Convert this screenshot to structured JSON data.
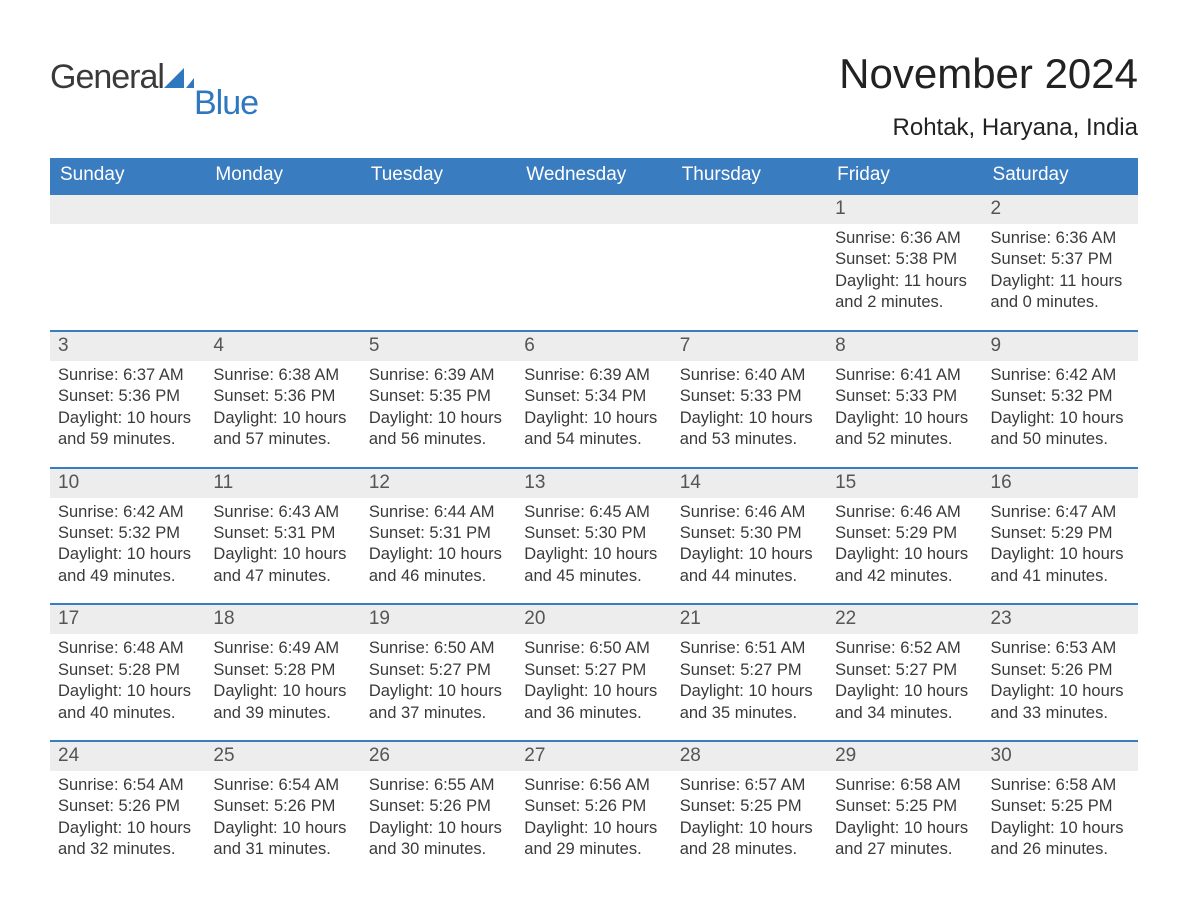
{
  "brand": {
    "name1": "General",
    "name2": "Blue",
    "color_text": "#3a3a3a",
    "color_accent": "#2f78bf"
  },
  "title": "November 2024",
  "location": "Rohtak, Haryana, India",
  "colors": {
    "header_bg": "#3a7cc0",
    "header_text": "#ffffff",
    "daynum_bg": "#ededed",
    "daynum_border": "#3a7cc0",
    "body_text": "#3a3a3a",
    "page_bg": "#ffffff"
  },
  "fonts": {
    "title_size_pt": 32,
    "location_size_pt": 18,
    "dow_size_pt": 14,
    "daynum_size_pt": 14,
    "body_size_pt": 12
  },
  "days_of_week": [
    "Sunday",
    "Monday",
    "Tuesday",
    "Wednesday",
    "Thursday",
    "Friday",
    "Saturday"
  ],
  "leading_blanks": 5,
  "days": [
    {
      "n": 1,
      "sunrise": "6:36 AM",
      "sunset": "5:38 PM",
      "daylight": "11 hours and 2 minutes."
    },
    {
      "n": 2,
      "sunrise": "6:36 AM",
      "sunset": "5:37 PM",
      "daylight": "11 hours and 0 minutes."
    },
    {
      "n": 3,
      "sunrise": "6:37 AM",
      "sunset": "5:36 PM",
      "daylight": "10 hours and 59 minutes."
    },
    {
      "n": 4,
      "sunrise": "6:38 AM",
      "sunset": "5:36 PM",
      "daylight": "10 hours and 57 minutes."
    },
    {
      "n": 5,
      "sunrise": "6:39 AM",
      "sunset": "5:35 PM",
      "daylight": "10 hours and 56 minutes."
    },
    {
      "n": 6,
      "sunrise": "6:39 AM",
      "sunset": "5:34 PM",
      "daylight": "10 hours and 54 minutes."
    },
    {
      "n": 7,
      "sunrise": "6:40 AM",
      "sunset": "5:33 PM",
      "daylight": "10 hours and 53 minutes."
    },
    {
      "n": 8,
      "sunrise": "6:41 AM",
      "sunset": "5:33 PM",
      "daylight": "10 hours and 52 minutes."
    },
    {
      "n": 9,
      "sunrise": "6:42 AM",
      "sunset": "5:32 PM",
      "daylight": "10 hours and 50 minutes."
    },
    {
      "n": 10,
      "sunrise": "6:42 AM",
      "sunset": "5:32 PM",
      "daylight": "10 hours and 49 minutes."
    },
    {
      "n": 11,
      "sunrise": "6:43 AM",
      "sunset": "5:31 PM",
      "daylight": "10 hours and 47 minutes."
    },
    {
      "n": 12,
      "sunrise": "6:44 AM",
      "sunset": "5:31 PM",
      "daylight": "10 hours and 46 minutes."
    },
    {
      "n": 13,
      "sunrise": "6:45 AM",
      "sunset": "5:30 PM",
      "daylight": "10 hours and 45 minutes."
    },
    {
      "n": 14,
      "sunrise": "6:46 AM",
      "sunset": "5:30 PM",
      "daylight": "10 hours and 44 minutes."
    },
    {
      "n": 15,
      "sunrise": "6:46 AM",
      "sunset": "5:29 PM",
      "daylight": "10 hours and 42 minutes."
    },
    {
      "n": 16,
      "sunrise": "6:47 AM",
      "sunset": "5:29 PM",
      "daylight": "10 hours and 41 minutes."
    },
    {
      "n": 17,
      "sunrise": "6:48 AM",
      "sunset": "5:28 PM",
      "daylight": "10 hours and 40 minutes."
    },
    {
      "n": 18,
      "sunrise": "6:49 AM",
      "sunset": "5:28 PM",
      "daylight": "10 hours and 39 minutes."
    },
    {
      "n": 19,
      "sunrise": "6:50 AM",
      "sunset": "5:27 PM",
      "daylight": "10 hours and 37 minutes."
    },
    {
      "n": 20,
      "sunrise": "6:50 AM",
      "sunset": "5:27 PM",
      "daylight": "10 hours and 36 minutes."
    },
    {
      "n": 21,
      "sunrise": "6:51 AM",
      "sunset": "5:27 PM",
      "daylight": "10 hours and 35 minutes."
    },
    {
      "n": 22,
      "sunrise": "6:52 AM",
      "sunset": "5:27 PM",
      "daylight": "10 hours and 34 minutes."
    },
    {
      "n": 23,
      "sunrise": "6:53 AM",
      "sunset": "5:26 PM",
      "daylight": "10 hours and 33 minutes."
    },
    {
      "n": 24,
      "sunrise": "6:54 AM",
      "sunset": "5:26 PM",
      "daylight": "10 hours and 32 minutes."
    },
    {
      "n": 25,
      "sunrise": "6:54 AM",
      "sunset": "5:26 PM",
      "daylight": "10 hours and 31 minutes."
    },
    {
      "n": 26,
      "sunrise": "6:55 AM",
      "sunset": "5:26 PM",
      "daylight": "10 hours and 30 minutes."
    },
    {
      "n": 27,
      "sunrise": "6:56 AM",
      "sunset": "5:26 PM",
      "daylight": "10 hours and 29 minutes."
    },
    {
      "n": 28,
      "sunrise": "6:57 AM",
      "sunset": "5:25 PM",
      "daylight": "10 hours and 28 minutes."
    },
    {
      "n": 29,
      "sunrise": "6:58 AM",
      "sunset": "5:25 PM",
      "daylight": "10 hours and 27 minutes."
    },
    {
      "n": 30,
      "sunrise": "6:58 AM",
      "sunset": "5:25 PM",
      "daylight": "10 hours and 26 minutes."
    }
  ],
  "labels": {
    "sunrise": "Sunrise:",
    "sunset": "Sunset:",
    "daylight": "Daylight:"
  }
}
